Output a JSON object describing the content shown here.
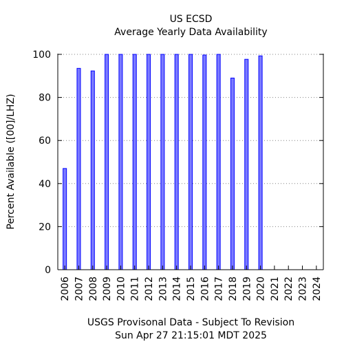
{
  "chart_data": {
    "type": "bar",
    "title": "US ECSD",
    "subtitle": "Average Yearly Data Availability",
    "ylabel": "Percent Available ([00]/LHZ)",
    "xlabel": "",
    "ylim": [
      0,
      100
    ],
    "yticks": [
      0,
      20,
      40,
      60,
      80,
      100
    ],
    "grid": true,
    "categories": [
      "2006",
      "2007",
      "2008",
      "2009",
      "2010",
      "2011",
      "2012",
      "2013",
      "2014",
      "2015",
      "2016",
      "2017",
      "2018",
      "2019",
      "2020",
      "2021",
      "2022",
      "2023",
      "2024"
    ],
    "values": [
      47,
      93.5,
      92.3,
      100,
      100,
      100,
      100,
      100,
      100,
      100,
      99.7,
      100,
      89,
      97.7,
      99.3,
      null,
      null,
      null,
      null
    ],
    "bar_color": "#7b7bff",
    "bar_edge_color": "#0000ff",
    "grid_color": "#808080"
  },
  "footer": {
    "line1": "USGS Provisonal Data - Subject To Revision",
    "line2": "Sun Apr 27 21:15:01 MDT 2025"
  }
}
